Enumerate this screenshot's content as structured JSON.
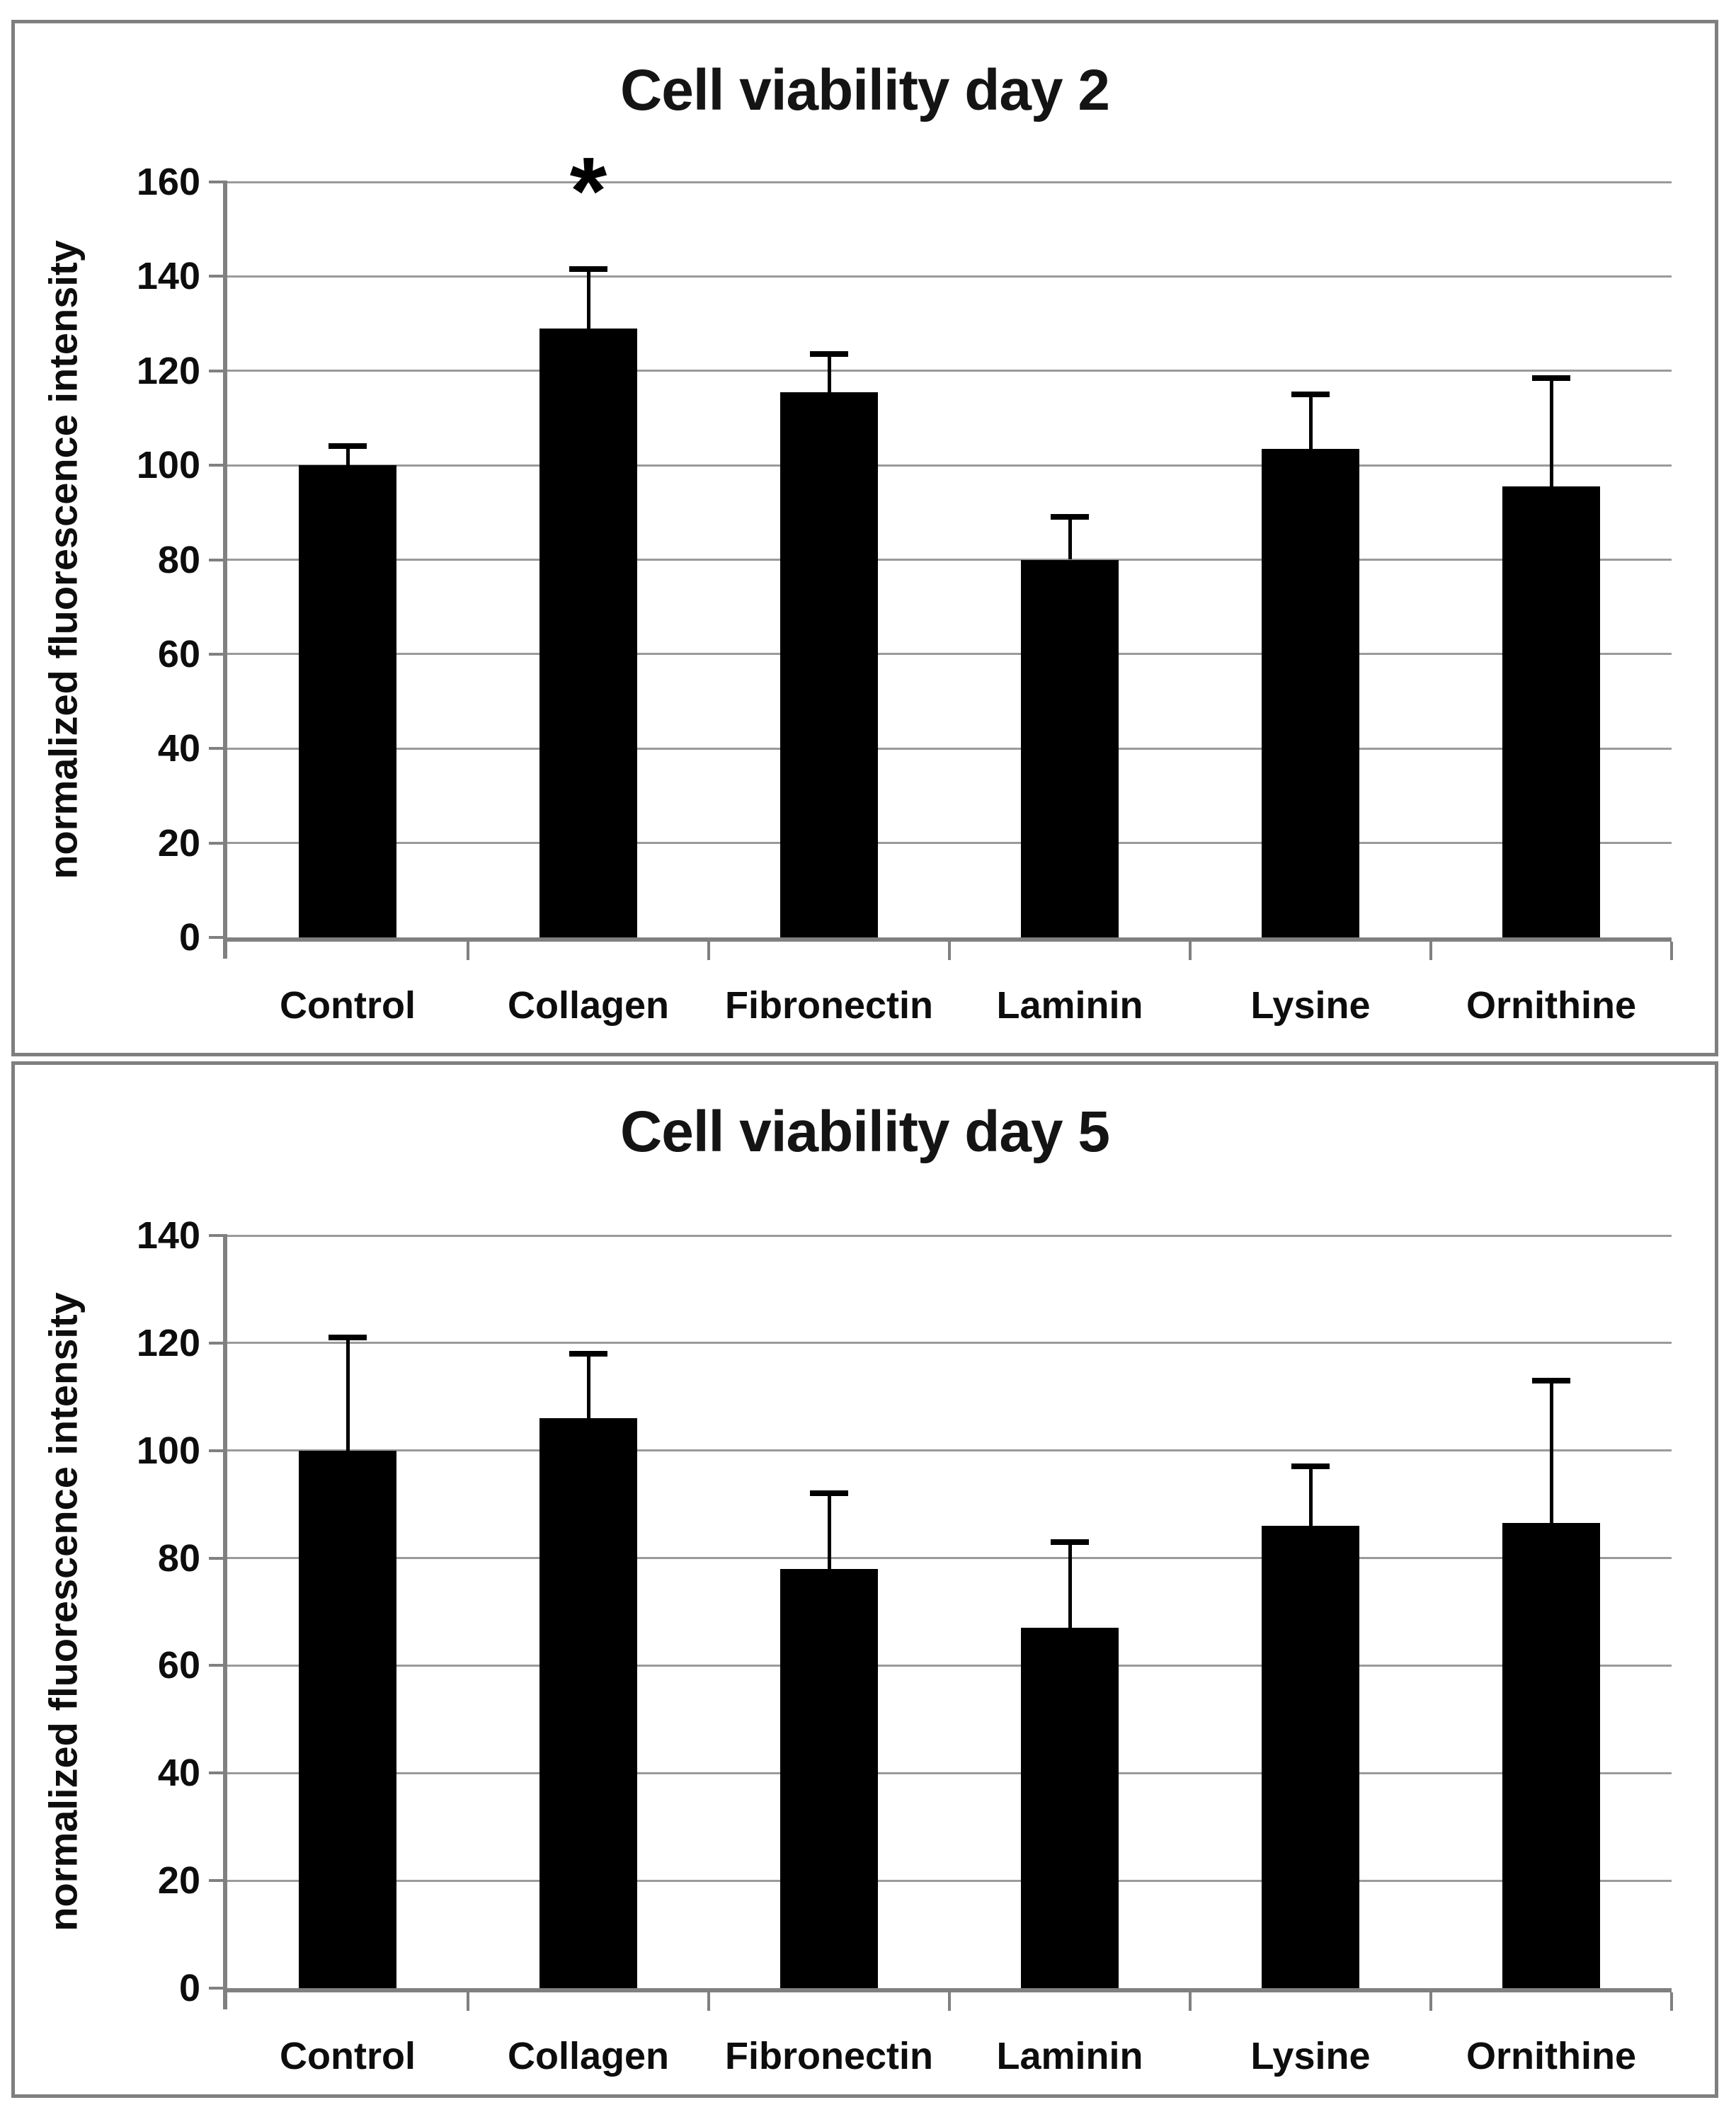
{
  "figure": {
    "colors": {
      "bar": "#000000",
      "gridline": "#9a9a9a",
      "axis": "#808080",
      "panel_border": "#7f7f7f",
      "background": "#ffffff",
      "text": "#0d0d0d"
    }
  },
  "chart_data": [
    {
      "type": "bar",
      "title": "Cell viability day 2",
      "ylabel": "normalized fluorescence intensity",
      "xlabel": "",
      "ylim": [
        0,
        160
      ],
      "ystep": 20,
      "yticks": [
        160,
        140,
        120,
        100,
        80,
        60,
        40,
        20,
        0
      ],
      "grid": "horizontal",
      "legend": "none",
      "categories": [
        "Control",
        "Collagen",
        "Fibronectin",
        "Laminin",
        "Lysine",
        "Ornithine"
      ],
      "values": [
        100,
        129,
        115.5,
        80,
        103.5,
        95.5
      ],
      "errors_up": [
        4,
        12.5,
        8,
        9,
        11.5,
        23
      ],
      "significance": [
        "",
        "*",
        "",
        "",
        "",
        ""
      ]
    },
    {
      "type": "bar",
      "title": "Cell viability day 5",
      "ylabel": "normalized fluorescence intensity",
      "xlabel": "",
      "ylim": [
        0,
        140
      ],
      "ystep": 20,
      "yticks": [
        140,
        120,
        100,
        80,
        60,
        40,
        20,
        0
      ],
      "grid": "horizontal",
      "legend": "none",
      "categories": [
        "Control",
        "Collagen",
        "Fibronectin",
        "Laminin",
        "Lysine",
        "Ornithine"
      ],
      "values": [
        100,
        106,
        78,
        67,
        86,
        86.5
      ],
      "errors_up": [
        21,
        12,
        14,
        16,
        11,
        26.5
      ],
      "significance": [
        "",
        "",
        "",
        "",
        "",
        ""
      ]
    }
  ]
}
